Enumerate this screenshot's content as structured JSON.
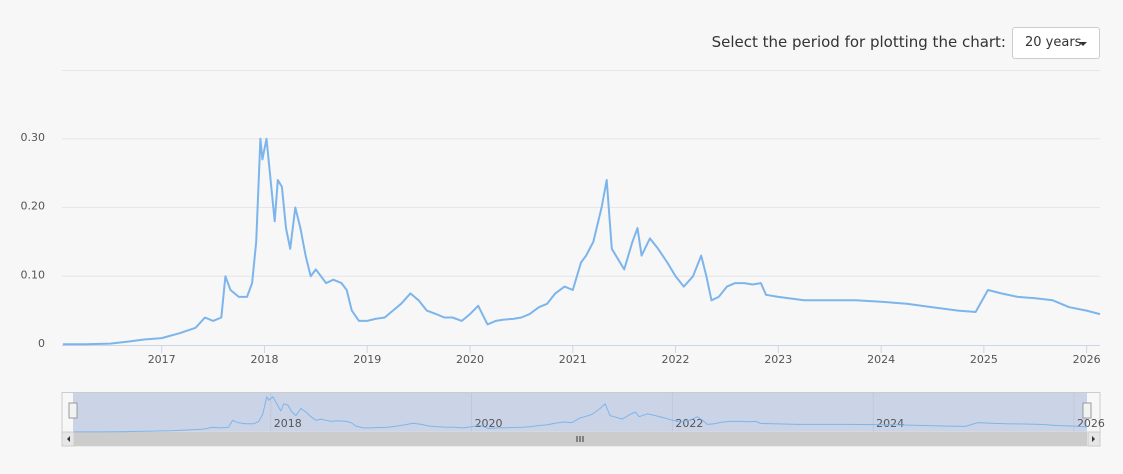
{
  "period_selector": {
    "label": "Select the period for plotting the chart:",
    "value": "20 years"
  },
  "chart_data": {
    "type": "line",
    "x": [
      2016.04,
      2016.25,
      2016.5,
      2016.67,
      2016.83,
      2017.0,
      2017.17,
      2017.33,
      2017.42,
      2017.5,
      2017.58,
      2017.62,
      2017.67,
      2017.75,
      2017.83,
      2017.88,
      2017.92,
      2017.96,
      2017.98,
      2018.02,
      2018.06,
      2018.1,
      2018.13,
      2018.17,
      2018.21,
      2018.25,
      2018.3,
      2018.35,
      2018.4,
      2018.45,
      2018.5,
      2018.55,
      2018.6,
      2018.67,
      2018.75,
      2018.8,
      2018.85,
      2018.92,
      2019.0,
      2019.08,
      2019.17,
      2019.25,
      2019.33,
      2019.42,
      2019.5,
      2019.58,
      2019.67,
      2019.75,
      2019.83,
      2019.92,
      2020.0,
      2020.08,
      2020.17,
      2020.25,
      2020.33,
      2020.42,
      2020.5,
      2020.58,
      2020.67,
      2020.75,
      2020.83,
      2020.92,
      2021.0,
      2021.08,
      2021.13,
      2021.2,
      2021.28,
      2021.33,
      2021.38,
      2021.42,
      2021.5,
      2021.58,
      2021.63,
      2021.67,
      2021.75,
      2021.83,
      2021.92,
      2022.0,
      2022.08,
      2022.17,
      2022.25,
      2022.3,
      2022.35,
      2022.42,
      2022.5,
      2022.58,
      2022.67,
      2022.75,
      2022.83,
      2022.88,
      2023.0,
      2023.25,
      2023.5,
      2023.75,
      2024.0,
      2024.25,
      2024.5,
      2024.75,
      2024.92,
      2025.04,
      2025.17,
      2025.33,
      2025.5,
      2025.67,
      2025.83,
      2026.0,
      2026.13
    ],
    "series": [
      {
        "color": "#7cb5ec",
        "values": [
          0.001,
          0.001,
          0.002,
          0.005,
          0.008,
          0.01,
          0.017,
          0.025,
          0.04,
          0.035,
          0.04,
          0.1,
          0.08,
          0.07,
          0.07,
          0.09,
          0.15,
          0.3,
          0.27,
          0.3,
          0.24,
          0.18,
          0.24,
          0.23,
          0.17,
          0.14,
          0.2,
          0.17,
          0.13,
          0.1,
          0.11,
          0.1,
          0.09,
          0.095,
          0.09,
          0.08,
          0.05,
          0.035,
          0.035,
          0.038,
          0.04,
          0.05,
          0.06,
          0.075,
          0.065,
          0.05,
          0.045,
          0.04,
          0.04,
          0.035,
          0.045,
          0.057,
          0.03,
          0.035,
          0.037,
          0.038,
          0.04,
          0.045,
          0.055,
          0.06,
          0.075,
          0.085,
          0.08,
          0.12,
          0.13,
          0.15,
          0.2,
          0.24,
          0.14,
          0.13,
          0.11,
          0.15,
          0.17,
          0.13,
          0.155,
          0.14,
          0.12,
          0.1,
          0.085,
          0.1,
          0.13,
          0.1,
          0.065,
          0.07,
          0.085,
          0.09,
          0.09,
          0.088,
          0.09,
          0.073,
          0.07,
          0.065,
          0.065,
          0.065,
          0.063,
          0.06,
          0.055,
          0.05,
          0.048,
          0.08,
          0.075,
          0.07,
          0.068,
          0.065,
          0.055,
          0.05,
          0.045
        ]
      }
    ],
    "xlim": [
      2016.03,
      2026.13
    ],
    "xticks": [
      2017,
      2018,
      2019,
      2020,
      2021,
      2022,
      2023,
      2024,
      2025,
      2026
    ],
    "ylim": [
      0,
      0.4
    ],
    "yticks": [
      0,
      {
        "value": 0.1,
        "label": "0.10"
      },
      {
        "value": 0.2,
        "label": "0.20"
      },
      {
        "value": 0.3,
        "label": "0.30"
      }
    ],
    "grid": true,
    "navigator": {
      "xticks": [
        2018,
        2020,
        2022,
        2024,
        2026
      ]
    }
  }
}
